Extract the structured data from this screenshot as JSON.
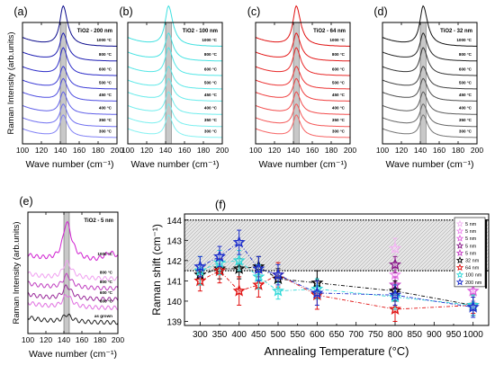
{
  "chart_data": [
    {
      "panel": "(a)",
      "type": "line",
      "title": "TiO2 - 200 nm",
      "xlabel": "Wave number (cm⁻¹)",
      "ylabel": "Raman Intensity (arb.units)",
      "xlim": [
        100,
        200
      ],
      "xticks": [
        100,
        120,
        140,
        160,
        180,
        200
      ],
      "vband": [
        140,
        146
      ],
      "colors": [
        "#0a0a8c",
        "#1d1db2",
        "#2a2ac8",
        "#3b3bd6",
        "#4d4de0",
        "#5f5fe8",
        "#7070f0",
        "#8080f5"
      ],
      "series": [
        "1000 °C",
        "800 °C",
        "600 °C",
        "500 °C",
        "450 °C",
        "400 °C",
        "350 °C",
        "300 °C"
      ]
    },
    {
      "panel": "(b)",
      "type": "line",
      "title": "TiO2 - 100 nm",
      "xlabel": "Wave number (cm⁻¹)",
      "xlim": [
        100,
        200
      ],
      "xticks": [
        100,
        120,
        140,
        160,
        180,
        200
      ],
      "vband": [
        140,
        146
      ],
      "colors": [
        "#3fe0e0",
        "#48e3e3",
        "#52e6e6",
        "#5ce8e8",
        "#66ebeb",
        "#70eded",
        "#7aefef",
        "#84f1f1"
      ],
      "series": [
        "1000 °C",
        "800 °C",
        "600 °C",
        "500 °C",
        "450 °C",
        "400 °C",
        "350 °C",
        "300 °C"
      ]
    },
    {
      "panel": "(c)",
      "type": "line",
      "title": "TiO2 - 64 nm",
      "xlabel": "Wave number (cm⁻¹)",
      "xlim": [
        100,
        200
      ],
      "xticks": [
        100,
        120,
        140,
        160,
        180,
        200
      ],
      "vband": [
        140,
        146
      ],
      "colors": [
        "#e01010",
        "#e41a1a",
        "#e82626",
        "#ec3232",
        "#ef3e3e",
        "#f24a4a",
        "#f45656",
        "#f66262"
      ],
      "series": [
        "1000 °C",
        "800 °C",
        "600 °C",
        "500 °C",
        "450 °C",
        "400 °C",
        "350 °C",
        "300 °C"
      ]
    },
    {
      "panel": "(d)",
      "type": "line",
      "title": "TiO2 - 32 nm",
      "xlabel": "Wave number (cm⁻¹)",
      "xlim": [
        100,
        200
      ],
      "xticks": [
        100,
        120,
        140,
        160,
        180,
        200
      ],
      "vband": [
        140,
        146
      ],
      "colors": [
        "#111111",
        "#262626",
        "#333333",
        "#404040",
        "#4d4d4d",
        "#5a5a5a",
        "#666666",
        "#737373"
      ],
      "series": [
        "1000 °C",
        "800 °C",
        "600 °C",
        "500 °C",
        "450 °C",
        "400 °C",
        "350 °C",
        "300 °C"
      ]
    },
    {
      "panel": "(e)",
      "type": "line",
      "title": "TiO2 - 5 nm",
      "xlabel": "Wave number (cm⁻¹)",
      "ylabel": "Raman Intensity (arb.units)",
      "xlim": [
        100,
        200
      ],
      "xticks": [
        100,
        120,
        140,
        160,
        180,
        200
      ],
      "vband": [
        140,
        146
      ],
      "colors": [
        "#d020d0",
        "#f0a0f0",
        "#c040c0",
        "#9a2a9a",
        "#e070e0",
        "#202020"
      ],
      "series": [
        "1000 °C",
        "800 °C",
        "800 °C",
        "600 °C",
        "600 °C",
        "as grown"
      ]
    },
    {
      "panel": "(f)",
      "type": "line",
      "xlabel": "Annealing Temperature (°C)",
      "ylabel": "Raman shift (cm⁻¹)",
      "xlim": [
        260,
        1040
      ],
      "ylim": [
        138.8,
        144.3
      ],
      "xticks": [
        300,
        350,
        400,
        450,
        500,
        550,
        600,
        650,
        700,
        750,
        800,
        850,
        900,
        950,
        1000
      ],
      "yticks": [
        139,
        140,
        141,
        142,
        143,
        144
      ],
      "hband": [
        141.5,
        144
      ],
      "series": [
        {
          "name": "5 nm",
          "color": "#f2b6f2",
          "points": [
            [
              800,
              142.6,
              0.5
            ]
          ]
        },
        {
          "name": "5 nm",
          "color": "#ee8cee",
          "points": [
            [
              800,
              141.3,
              0.4
            ]
          ]
        },
        {
          "name": "5 nm",
          "color": "#e060e0",
          "points": [
            [
              1000,
              140.5,
              0.5
            ]
          ]
        },
        {
          "name": "5 nm",
          "color": "#8a1a8a",
          "points": [
            [
              800,
              141.8,
              0.4
            ]
          ]
        },
        {
          "name": "5 nm",
          "color": "#c43cc4",
          "points": [
            [
              800,
              140.8,
              0.4
            ]
          ]
        },
        {
          "name": "32 nm",
          "color": "#000000",
          "points": [
            [
              300,
              141.3,
              0.5
            ],
            [
              350,
              141.6,
              0.5
            ],
            [
              400,
              141.6,
              0.5
            ],
            [
              450,
              141.7,
              0.5
            ],
            [
              500,
              141.1,
              0.5
            ],
            [
              600,
              140.9,
              0.6
            ],
            [
              800,
              140.5,
              0.5
            ],
            [
              1000,
              139.8,
              0.5
            ]
          ]
        },
        {
          "name": "64 nm",
          "color": "#e01010",
          "points": [
            [
              300,
              141.0,
              0.5
            ],
            [
              350,
              141.5,
              0.6
            ],
            [
              400,
              140.5,
              0.7
            ],
            [
              450,
              140.8,
              0.6
            ],
            [
              500,
              141.3,
              0.6
            ],
            [
              600,
              140.3,
              0.7
            ],
            [
              800,
              139.6,
              0.6
            ],
            [
              1000,
              139.8,
              0.4
            ]
          ]
        },
        {
          "name": "100 nm",
          "color": "#30d8d8",
          "points": [
            [
              300,
              141.5,
              0.7
            ],
            [
              350,
              141.9,
              0.6
            ],
            [
              400,
              142.0,
              0.5
            ],
            [
              450,
              141.2,
              0.6
            ],
            [
              500,
              140.5,
              0.4
            ],
            [
              600,
              140.6,
              0.5
            ],
            [
              800,
              140.2,
              0.6
            ],
            [
              1000,
              139.8,
              0.5
            ]
          ]
        },
        {
          "name": "200 nm",
          "color": "#1a2ccc",
          "points": [
            [
              300,
              141.7,
              0.5
            ],
            [
              350,
              142.2,
              0.5
            ],
            [
              400,
              142.9,
              0.6
            ],
            [
              450,
              141.6,
              0.6
            ],
            [
              500,
              141.3,
              0.5
            ],
            [
              600,
              140.4,
              0.6
            ],
            [
              800,
              140.3,
              0.5
            ],
            [
              1000,
              139.7,
              0.5
            ]
          ]
        }
      ]
    }
  ]
}
